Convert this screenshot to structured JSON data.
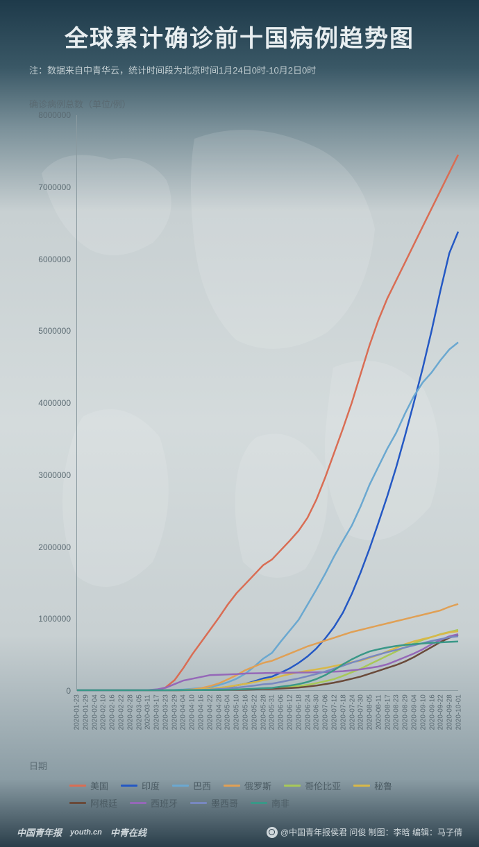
{
  "title": "全球累计确诊前十国病例趋势图",
  "subtitle": "注：数据来自中青华云，统计时间段为北京时间1月24日0时-10月2日0时",
  "ylabel": "确诊病例总数（单位/例）",
  "xlabel": "日期",
  "chart": {
    "type": "line",
    "ylim": [
      0,
      8000000
    ],
    "yticks": [
      0,
      1000000,
      2000000,
      3000000,
      4000000,
      5000000,
      6000000,
      7000000,
      8000000
    ],
    "xticks": [
      "2020-01-23",
      "2020-01-29",
      "2020-02-04",
      "2020-02-10",
      "2020-02-16",
      "2020-02-22",
      "2020-02-28",
      "2020-03-05",
      "2020-03-11",
      "2020-03-17",
      "2020-03-23",
      "2020-03-29",
      "2020-04-04",
      "2020-04-10",
      "2020-04-16",
      "2020-04-22",
      "2020-04-28",
      "2020-05-04",
      "2020-05-10",
      "2020-05-16",
      "2020-05-22",
      "2020-05-28",
      "2020-05-31",
      "2020-06-06",
      "2020-06-12",
      "2020-06-18",
      "2020-06-24",
      "2020-06-30",
      "2020-07-06",
      "2020-07-12",
      "2020-07-18",
      "2020-07-24",
      "2020-07-30",
      "2020-08-05",
      "2020-08-11",
      "2020-08-17",
      "2020-08-23",
      "2020-08-29",
      "2020-09-04",
      "2020-09-10",
      "2020-09-16",
      "2020-09-22",
      "2020-09-28",
      "2020-10-01"
    ],
    "background_color": "#d4dbdc",
    "axis_color": "#8a9aa0",
    "tick_color": "#5a6a72",
    "tick_fontsize": 12,
    "line_width": 2.5
  },
  "series": [
    {
      "name": "美国",
      "label": "美国",
      "color": "#d96d54",
      "values": [
        0,
        0,
        0,
        0,
        0,
        0,
        0,
        0,
        1000,
        6000,
        40000,
        140000,
        310000,
        500000,
        670000,
        840000,
        1010000,
        1190000,
        1350000,
        1480000,
        1610000,
        1740000,
        1820000,
        1950000,
        2080000,
        2220000,
        2400000,
        2650000,
        2960000,
        3300000,
        3640000,
        4000000,
        4400000,
        4800000,
        5150000,
        5450000,
        5700000,
        5950000,
        6200000,
        6450000,
        6700000,
        6950000,
        7200000,
        7450000
      ]
    },
    {
      "name": "印度",
      "label": "印度",
      "color": "#2458c4",
      "values": [
        0,
        0,
        0,
        0,
        0,
        0,
        0,
        0,
        0,
        0,
        0,
        1000,
        3000,
        7000,
        13000,
        21000,
        31000,
        46000,
        67000,
        90000,
        125000,
        165000,
        190000,
        245000,
        305000,
        380000,
        470000,
        580000,
        720000,
        880000,
        1080000,
        1340000,
        1640000,
        1970000,
        2330000,
        2700000,
        3100000,
        3540000,
        4000000,
        4480000,
        5000000,
        5560000,
        6080000,
        6380000
      ]
    },
    {
      "name": "巴西",
      "label": "巴西",
      "color": "#6ba8d0",
      "values": [
        0,
        0,
        0,
        0,
        0,
        0,
        0,
        0,
        0,
        0,
        1500,
        4000,
        10000,
        20000,
        32000,
        46000,
        72000,
        110000,
        160000,
        230000,
        330000,
        440000,
        520000,
        680000,
        830000,
        980000,
        1190000,
        1400000,
        1620000,
        1860000,
        2080000,
        2290000,
        2560000,
        2860000,
        3110000,
        3360000,
        3580000,
        3850000,
        4090000,
        4280000,
        4420000,
        4590000,
        4740000,
        4840000
      ]
    },
    {
      "name": "俄罗斯",
      "label": "俄罗斯",
      "color": "#e0a055",
      "values": [
        0,
        0,
        0,
        0,
        0,
        0,
        0,
        0,
        0,
        0,
        0,
        1500,
        4000,
        12000,
        28000,
        58000,
        95000,
        150000,
        210000,
        280000,
        330000,
        380000,
        410000,
        460000,
        510000,
        560000,
        610000,
        650000,
        690000,
        730000,
        770000,
        810000,
        840000,
        870000,
        900000,
        930000,
        960000,
        990000,
        1020000,
        1050000,
        1080000,
        1110000,
        1160000,
        1200000
      ]
    },
    {
      "name": "哥伦比亚",
      "label": "哥伦比亚",
      "color": "#a8c858",
      "values": [
        0,
        0,
        0,
        0,
        0,
        0,
        0,
        0,
        0,
        0,
        0,
        0,
        1000,
        2000,
        3000,
        4000,
        6000,
        8000,
        11000,
        15000,
        20000,
        26000,
        30000,
        40000,
        48000,
        60000,
        75000,
        98000,
        125000,
        155000,
        200000,
        250000,
        300000,
        360000,
        420000,
        480000,
        540000,
        600000,
        650000,
        700000,
        740000,
        780000,
        810000,
        840000
      ]
    },
    {
      "name": "秘鲁",
      "label": "秘鲁",
      "color": "#d8b848",
      "values": [
        0,
        0,
        0,
        0,
        0,
        0,
        0,
        0,
        0,
        0,
        0,
        1000,
        2000,
        6000,
        13000,
        20000,
        32000,
        48000,
        68000,
        90000,
        112000,
        140000,
        160000,
        195000,
        225000,
        250000,
        270000,
        290000,
        310000,
        335000,
        360000,
        390000,
        410000,
        450000,
        490000,
        540000,
        590000,
        640000,
        680000,
        710000,
        740000,
        775000,
        805000,
        820000
      ]
    },
    {
      "name": "阿根廷",
      "label": "阿根廷",
      "color": "#6a4a3a",
      "values": [
        0,
        0,
        0,
        0,
        0,
        0,
        0,
        0,
        0,
        0,
        0,
        0,
        1000,
        2000,
        3000,
        3500,
        4000,
        5000,
        6000,
        8000,
        11000,
        15000,
        17000,
        23000,
        30000,
        38000,
        50000,
        65000,
        85000,
        105000,
        130000,
        160000,
        190000,
        230000,
        270000,
        310000,
        350000,
        400000,
        460000,
        530000,
        600000,
        670000,
        730000,
        770000
      ]
    },
    {
      "name": "西班牙",
      "label": "西班牙",
      "color": "#9568b8",
      "values": [
        0,
        0,
        0,
        0,
        0,
        0,
        0,
        0,
        2000,
        12000,
        35000,
        85000,
        135000,
        160000,
        185000,
        210000,
        215000,
        220000,
        225000,
        232000,
        235000,
        238000,
        240000,
        242000,
        244000,
        246000,
        248000,
        250000,
        253000,
        258000,
        264000,
        278000,
        290000,
        310000,
        330000,
        360000,
        410000,
        460000,
        510000,
        570000,
        640000,
        700000,
        750000,
        780000
      ]
    },
    {
      "name": "墨西哥",
      "label": "墨西哥",
      "color": "#7888c0",
      "values": [
        0,
        0,
        0,
        0,
        0,
        0,
        0,
        0,
        0,
        0,
        0,
        1000,
        2000,
        4000,
        6000,
        10000,
        16000,
        25000,
        36000,
        49000,
        65000,
        82000,
        92000,
        115000,
        140000,
        165000,
        195000,
        225000,
        260000,
        300000,
        340000,
        385000,
        420000,
        460000,
        495000,
        530000,
        560000,
        595000,
        625000,
        655000,
        685000,
        710000,
        735000,
        750000
      ]
    },
    {
      "name": "南非",
      "label": "南非",
      "color": "#3a9888",
      "values": [
        0,
        0,
        0,
        0,
        0,
        0,
        0,
        0,
        0,
        0,
        0,
        1000,
        2000,
        2000,
        3000,
        4000,
        5000,
        8000,
        11000,
        15000,
        21000,
        28000,
        33000,
        50000,
        65000,
        85000,
        115000,
        155000,
        210000,
        280000,
        360000,
        430000,
        490000,
        540000,
        570000,
        595000,
        615000,
        630000,
        640000,
        650000,
        660000,
        665000,
        672000,
        678000
      ]
    }
  ],
  "footer": {
    "logos": [
      "中国青年报",
      "youth.cn",
      "中青在线"
    ],
    "credit": "@中国青年报侯君 问俊 制图：李晗 编辑：马子倩"
  }
}
